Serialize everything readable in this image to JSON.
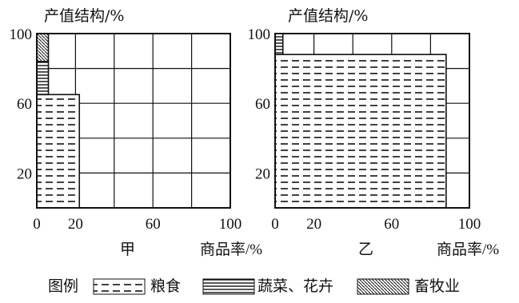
{
  "chart_data": [
    {
      "type": "bar",
      "panel": "甲",
      "ylabel": "产值结构/%",
      "xlabel": "商品率/%",
      "xlim": [
        0,
        100
      ],
      "ylim": [
        0,
        100
      ],
      "x_ticks": [
        "0",
        "20",
        "60",
        "100"
      ],
      "y_ticks": [
        "20",
        "60",
        "100"
      ],
      "grid": true,
      "segments": [
        {
          "category": "粮食",
          "y_from": 0,
          "y_to": 65,
          "x_from": 0,
          "x_to": 22
        },
        {
          "category": "蔬菜、花卉",
          "y_from": 65,
          "y_to": 84,
          "x_from": 0,
          "x_to": 6
        },
        {
          "category": "畜牧业",
          "y_from": 84,
          "y_to": 100,
          "x_from": 0,
          "x_to": 6
        }
      ]
    },
    {
      "type": "bar",
      "panel": "乙",
      "ylabel": "产值结构/%",
      "xlabel": "商品率/%",
      "xlim": [
        0,
        100
      ],
      "ylim": [
        0,
        100
      ],
      "x_ticks": [
        "0",
        "20",
        "60",
        "100"
      ],
      "y_ticks": [
        "20",
        "60",
        "100"
      ],
      "grid": true,
      "segments": [
        {
          "category": "粮食",
          "y_from": 0,
          "y_to": 88,
          "x_from": 0,
          "x_to": 88
        },
        {
          "category": "蔬菜、花卉",
          "y_from": 88,
          "y_to": 100,
          "x_from": 0,
          "x_to": 4
        }
      ]
    }
  ],
  "legend": {
    "title": "图例",
    "items": [
      {
        "label": "粮食",
        "pattern": "dashes"
      },
      {
        "label": "蔬菜、花卉",
        "pattern": "horizontal-lines"
      },
      {
        "label": "畜牧业",
        "pattern": "diagonal-hatch"
      }
    ]
  }
}
